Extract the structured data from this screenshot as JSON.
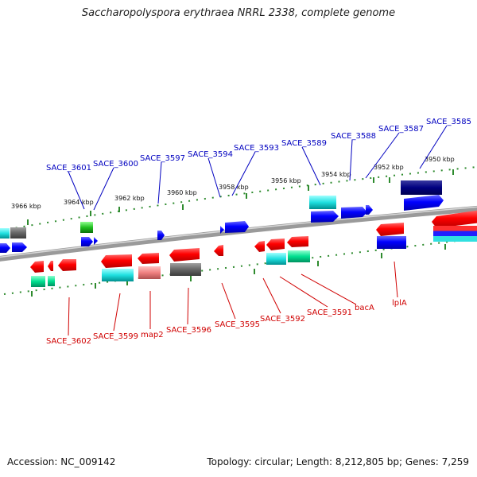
{
  "title": "Saccharopolyspora erythraea NRRL 2338, complete genome",
  "accession": "Accession: NC_009142",
  "summary": "Topology: circular; Length: 8,212,805 bp; Genes: 7,259",
  "colors": {
    "top_label": "#0000c0",
    "bottom_label": "#d00000",
    "backbone": "#808080",
    "tick": "#2e8b2e"
  },
  "kbp_ticks": [
    "3966 kbp",
    "3964 kbp",
    "3962 kbp",
    "3960 kbp",
    "3958 kbp",
    "3956 kbp",
    "3954 kbp",
    "3952 kbp",
    "3950 kbp"
  ],
  "top_genes": [
    "SACE_3601",
    "SACE_3600",
    "SACE_3597",
    "SACE_3594",
    "SACE_3593",
    "SACE_3589",
    "SACE_3588",
    "SACE_3587",
    "SACE_3585"
  ],
  "bottom_genes": [
    "SACE_3602",
    "SACE_3599",
    "map2",
    "SACE_3596",
    "SACE_3595",
    "SACE_3592",
    "SACE_3591",
    "bacA",
    "lplA"
  ]
}
